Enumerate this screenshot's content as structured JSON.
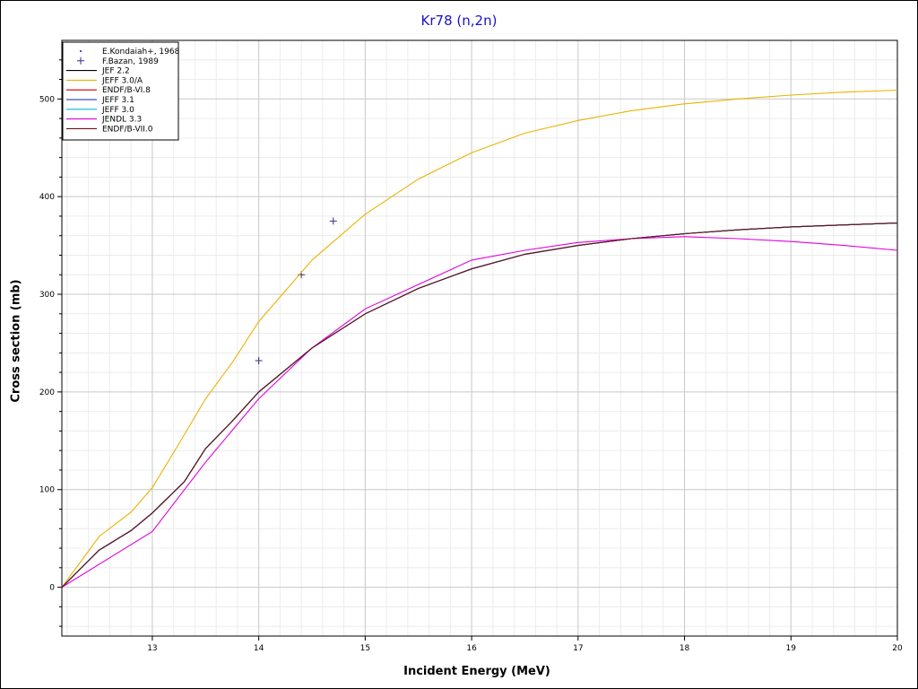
{
  "chart_data": {
    "type": "line",
    "title": "Kr78 (n,2n)",
    "xlabel": "Incident Energy (MeV)",
    "ylabel": "Cross section (mb)",
    "xlim": [
      12.15,
      20.0
    ],
    "ylim": [
      -50,
      560
    ],
    "x_ticks": [
      13,
      14,
      15,
      16,
      17,
      18,
      19,
      20
    ],
    "y_ticks": [
      0,
      100,
      200,
      300,
      400,
      500
    ],
    "grid": true,
    "legend_position": "top-left",
    "series": [
      {
        "name": "E.Kondaiah+, 1968",
        "kind": "points",
        "marker": "dot",
        "color": "#1a12c9",
        "x": [],
        "y": []
      },
      {
        "name": "F.Bazan, 1989",
        "kind": "points",
        "marker": "plus",
        "color": "#3b2a8e",
        "x": [
          14.0,
          14.4,
          14.7
        ],
        "y": [
          232,
          320,
          375
        ]
      },
      {
        "name": "JEF 2.2",
        "kind": "line",
        "color": "#000000",
        "x": [
          12.15,
          12.5,
          12.8,
          13.0,
          13.3,
          13.5,
          13.75,
          14.0,
          14.5,
          15.0,
          15.5,
          16.0,
          16.5,
          17.0,
          17.5,
          18.0,
          18.5,
          19.0,
          19.5,
          20.0
        ],
        "y": [
          0,
          38,
          58,
          76,
          108,
          142,
          170,
          200,
          245,
          280,
          306,
          326,
          341,
          350,
          357,
          362,
          366,
          369,
          371,
          373
        ]
      },
      {
        "name": "JEFF 3.0/A",
        "kind": "line",
        "color": "#e8b400",
        "x": [
          12.15,
          12.5,
          12.8,
          13.0,
          13.25,
          13.5,
          13.75,
          14.0,
          14.5,
          15.0,
          15.5,
          16.0,
          16.5,
          17.0,
          17.5,
          18.0,
          18.5,
          19.0,
          19.5,
          20.0
        ],
        "y": [
          0,
          52,
          77,
          102,
          147,
          193,
          230,
          272,
          335,
          382,
          418,
          445,
          465,
          478,
          488,
          495,
          500,
          504,
          507,
          509
        ]
      },
      {
        "name": "ENDF/B-VI.8",
        "kind": "line",
        "color": "#c00000",
        "x": [
          12.15,
          12.5,
          12.8,
          13.0,
          13.3,
          13.5,
          13.75,
          14.0,
          14.5,
          15.0,
          15.5,
          16.0,
          16.5,
          17.0,
          17.5,
          18.0,
          18.5,
          19.0,
          19.5,
          20.0
        ],
        "y": [
          0,
          38,
          58,
          76,
          108,
          142,
          170,
          200,
          245,
          280,
          306,
          326,
          341,
          350,
          357,
          362,
          366,
          369,
          371,
          373
        ]
      },
      {
        "name": "JEFF 3.1",
        "kind": "line",
        "color": "#1020a8",
        "x": [
          12.15,
          12.5,
          12.8,
          13.0,
          13.3,
          13.5,
          13.75,
          14.0,
          14.5,
          15.0,
          15.5,
          16.0,
          16.5,
          17.0,
          17.5,
          18.0,
          18.5,
          19.0,
          19.5,
          20.0
        ],
        "y": [
          0,
          38,
          58,
          76,
          108,
          142,
          170,
          200,
          245,
          280,
          306,
          326,
          341,
          350,
          357,
          362,
          366,
          369,
          371,
          373
        ]
      },
      {
        "name": "JEFF 3.0",
        "kind": "line",
        "color": "#00b8d8",
        "x": [
          12.15,
          12.5,
          12.8,
          13.0,
          13.3,
          13.5,
          13.75,
          14.0,
          14.5,
          15.0,
          15.5,
          16.0,
          16.5,
          17.0,
          17.5,
          18.0,
          18.5,
          19.0,
          19.5,
          20.0
        ],
        "y": [
          0,
          38,
          58,
          76,
          108,
          142,
          170,
          200,
          245,
          280,
          306,
          326,
          341,
          350,
          357,
          362,
          366,
          369,
          371,
          373
        ]
      },
      {
        "name": "JENDL 3.3",
        "kind": "line",
        "color": "#e000e0",
        "x": [
          12.15,
          13.0,
          13.5,
          14.0,
          14.5,
          15.0,
          15.5,
          16.0,
          16.5,
          17.0,
          17.5,
          18.0,
          18.5,
          19.0,
          19.5,
          20.0
        ],
        "y": [
          0,
          57,
          128,
          193,
          245,
          285,
          310,
          335,
          345,
          353,
          357,
          359,
          357,
          354,
          350,
          345
        ]
      },
      {
        "name": "ENDF/B-VII.0",
        "kind": "line",
        "color": "#6a0f18",
        "x": [
          12.15,
          12.5,
          12.8,
          13.0,
          13.3,
          13.5,
          13.75,
          14.0,
          14.5,
          15.0,
          15.5,
          16.0,
          16.5,
          17.0,
          17.5,
          18.0,
          18.5,
          19.0,
          19.5,
          20.0
        ],
        "y": [
          0,
          38,
          58,
          76,
          108,
          142,
          170,
          200,
          245,
          280,
          306,
          326,
          341,
          350,
          357,
          362,
          366,
          369,
          371,
          373
        ]
      }
    ]
  }
}
